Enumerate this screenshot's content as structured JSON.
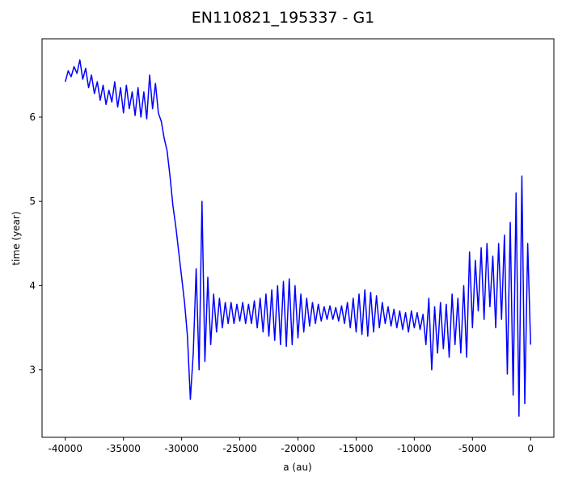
{
  "chart_data": {
    "type": "line",
    "title": "EN110821_195337 - G1",
    "x_label": "a (au)",
    "y_label": "time (year)",
    "color": "#0000ff",
    "xlim": [
      -42000,
      2000
    ],
    "ylim": [
      2.2,
      6.93
    ],
    "xticks": [
      -40000,
      -35000,
      -30000,
      -25000,
      -20000,
      -15000,
      -10000,
      -5000,
      0
    ],
    "yticks": [
      3,
      4,
      5,
      6
    ],
    "x": [
      -40000,
      -39750,
      -39500,
      -39250,
      -39000,
      -38750,
      -38500,
      -38250,
      -38000,
      -37750,
      -37500,
      -37250,
      -37000,
      -36750,
      -36500,
      -36250,
      -36000,
      -35750,
      -35500,
      -35250,
      -35000,
      -34750,
      -34500,
      -34250,
      -34000,
      -33750,
      -33500,
      -33250,
      -33000,
      -32750,
      -32500,
      -32250,
      -32000,
      -31750,
      -31500,
      -31250,
      -31000,
      -30750,
      -30500,
      -30250,
      -30000,
      -29750,
      -29500,
      -29250,
      -29000,
      -28750,
      -28500,
      -28250,
      -28000,
      -27750,
      -27500,
      -27250,
      -27000,
      -26750,
      -26500,
      -26250,
      -26000,
      -25750,
      -25500,
      -25250,
      -25000,
      -24750,
      -24500,
      -24250,
      -24000,
      -23750,
      -23500,
      -23250,
      -23000,
      -22750,
      -22500,
      -22250,
      -22000,
      -21750,
      -21500,
      -21250,
      -21000,
      -20750,
      -20500,
      -20250,
      -20000,
      -19750,
      -19500,
      -19250,
      -19000,
      -18750,
      -18500,
      -18250,
      -18000,
      -17750,
      -17500,
      -17250,
      -17000,
      -16750,
      -16500,
      -16250,
      -16000,
      -15750,
      -15500,
      -15250,
      -15000,
      -14750,
      -14500,
      -14250,
      -14000,
      -13750,
      -13500,
      -13250,
      -13000,
      -12750,
      -12500,
      -12250,
      -12000,
      -11750,
      -11500,
      -11250,
      -11000,
      -10750,
      -10500,
      -10250,
      -10000,
      -9750,
      -9500,
      -9250,
      -9000,
      -8750,
      -8500,
      -8250,
      -8000,
      -7750,
      -7500,
      -7250,
      -7000,
      -6750,
      -6500,
      -6250,
      -6000,
      -5750,
      -5500,
      -5250,
      -5000,
      -4750,
      -4500,
      -4250,
      -4000,
      -3750,
      -3500,
      -3250,
      -3000,
      -2750,
      -2500,
      -2250,
      -2000,
      -1750,
      -1500,
      -1250,
      -1000,
      -750,
      -500,
      -250,
      0
    ],
    "values": [
      6.42,
      6.55,
      6.48,
      6.6,
      6.52,
      6.68,
      6.45,
      6.58,
      6.35,
      6.5,
      6.28,
      6.42,
      6.2,
      6.38,
      6.15,
      6.32,
      6.18,
      6.42,
      6.12,
      6.35,
      6.05,
      6.38,
      6.1,
      6.3,
      6.02,
      6.35,
      6.0,
      6.3,
      5.98,
      6.5,
      6.1,
      6.4,
      6.05,
      5.95,
      5.75,
      5.6,
      5.3,
      4.95,
      4.7,
      4.4,
      4.1,
      3.8,
      3.4,
      2.65,
      3.2,
      4.2,
      3.0,
      5.0,
      3.1,
      4.1,
      3.3,
      3.9,
      3.45,
      3.85,
      3.5,
      3.8,
      3.55,
      3.8,
      3.55,
      3.78,
      3.58,
      3.8,
      3.55,
      3.78,
      3.55,
      3.82,
      3.5,
      3.85,
      3.45,
      3.9,
      3.4,
      3.95,
      3.35,
      4.0,
      3.3,
      4.05,
      3.28,
      4.08,
      3.3,
      4.0,
      3.38,
      3.9,
      3.45,
      3.85,
      3.52,
      3.8,
      3.55,
      3.78,
      3.58,
      3.75,
      3.6,
      3.76,
      3.6,
      3.74,
      3.58,
      3.76,
      3.55,
      3.8,
      3.5,
      3.85,
      3.45,
      3.9,
      3.42,
      3.95,
      3.4,
      3.92,
      3.45,
      3.88,
      3.5,
      3.8,
      3.55,
      3.75,
      3.52,
      3.72,
      3.5,
      3.7,
      3.48,
      3.68,
      3.45,
      3.7,
      3.5,
      3.68,
      3.48,
      3.66,
      3.3,
      3.85,
      3.0,
      3.75,
      3.2,
      3.8,
      3.25,
      3.78,
      3.15,
      3.9,
      3.3,
      3.85,
      3.2,
      4.0,
      3.15,
      4.4,
      3.5,
      4.3,
      3.7,
      4.45,
      3.6,
      4.5,
      3.75,
      4.35,
      3.5,
      4.5,
      3.6,
      4.6,
      2.95,
      4.75,
      2.7,
      5.1,
      2.45,
      5.3,
      2.6,
      4.5,
      3.3
    ]
  }
}
